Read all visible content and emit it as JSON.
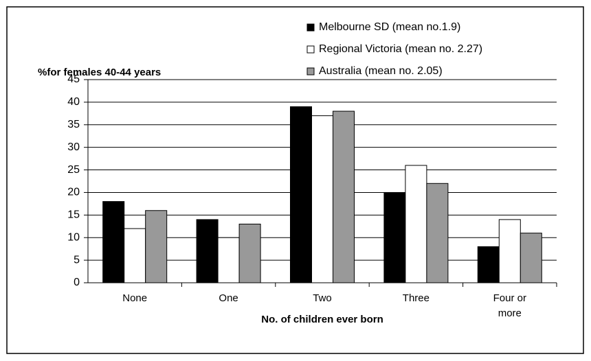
{
  "chart_data": {
    "type": "bar",
    "y_label": "%for females 40-44 years",
    "x_label": "No. of children ever born",
    "categories": [
      "None",
      "One",
      "Two",
      "Three",
      "Four or more"
    ],
    "series": [
      {
        "name": "Melbourne SD (mean no.1.9)",
        "color": "#000000",
        "values": [
          18,
          14,
          39,
          20,
          8
        ]
      },
      {
        "name": "Regional Victoria (mean no. 2.27)",
        "color": "#ffffff",
        "values": [
          12,
          10,
          37,
          26,
          14
        ]
      },
      {
        "name": "Australia (mean no. 2.05)",
        "color": "#999999",
        "values": [
          16,
          13,
          38,
          22,
          11
        ]
      }
    ],
    "ylim": [
      0,
      45
    ],
    "yticks": [
      0,
      5,
      10,
      15,
      20,
      25,
      30,
      35,
      40,
      45
    ],
    "grid": true,
    "legend": "top-right"
  }
}
